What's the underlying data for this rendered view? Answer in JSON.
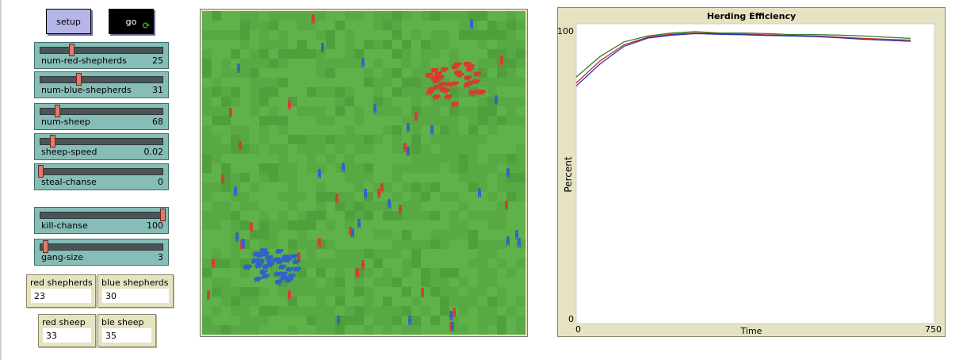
{
  "buttons": {
    "setup": "setup",
    "go": "go",
    "go_icon": "forever-loop-icon"
  },
  "sliders": [
    {
      "name": "num-red-shepherds",
      "value": "25",
      "min": 0,
      "max": 100,
      "num": 25
    },
    {
      "name": "num-blue-shepherds",
      "value": "31",
      "min": 0,
      "max": 100,
      "num": 31
    },
    {
      "name": "num-sheep",
      "value": "68",
      "min": 0,
      "max": 500,
      "num": 68
    },
    {
      "name": "sheep-speed",
      "value": "0.02",
      "min": 0,
      "max": 0.2,
      "num": 0.02
    },
    {
      "name": "steal-chanse",
      "value": "0",
      "min": 0,
      "max": 100,
      "num": 0
    },
    {
      "name": "kill-chanse",
      "value": "100",
      "min": 0,
      "max": 100,
      "num": 100
    },
    {
      "name": "gang-size",
      "value": "3",
      "min": 1,
      "max": 50,
      "num": 3
    }
  ],
  "monitors": {
    "red_shepherds": {
      "label": "red shepherds",
      "value": "23"
    },
    "blue_shepherds": {
      "label": "blue shepherds",
      "value": "30"
    },
    "red_sheep": {
      "label": "red sheep",
      "value": "33"
    },
    "ble_sheep": {
      "label": "ble sheep",
      "value": "35"
    }
  },
  "colors": {
    "grass_light": "#5fb24a",
    "grass_dark": "#4fa03c",
    "red": "#d93a32",
    "blue": "#2f63c7"
  },
  "plot": {
    "title": "Herding Efficiency",
    "xlabel": "Time",
    "ylabel": "Percent",
    "xmin_label": "0",
    "xmax_label": "750",
    "ymin_label": "0",
    "ymax_label": "100"
  },
  "chart_data": {
    "type": "line",
    "title": "Herding Efficiency",
    "xlabel": "Time",
    "ylabel": "Percent",
    "xlim": [
      0,
      750
    ],
    "ylim": [
      0,
      100
    ],
    "x": [
      0,
      50,
      100,
      150,
      200,
      250,
      300,
      350,
      400,
      450,
      500,
      550,
      600,
      650,
      700
    ],
    "series": [
      {
        "color": "#2e7d2e",
        "values": [
          84,
          91,
          96,
          98,
          99,
          99.5,
          99,
          99,
          98.8,
          98.5,
          98.5,
          98.3,
          98,
          97.6,
          97.2
        ]
      },
      {
        "color": "#c0302c",
        "values": [
          82,
          89.5,
          95,
          97.6,
          98.6,
          99,
          98.8,
          98.6,
          98.4,
          98.2,
          98,
          97.6,
          97.2,
          96.9,
          96.6
        ]
      },
      {
        "color": "#2c2ca8",
        "values": [
          81,
          88.5,
          94.5,
          97.3,
          98.3,
          98.8,
          98.6,
          98.4,
          98.2,
          98,
          97.8,
          97.4,
          96.9,
          96.5,
          96.2
        ]
      }
    ]
  }
}
